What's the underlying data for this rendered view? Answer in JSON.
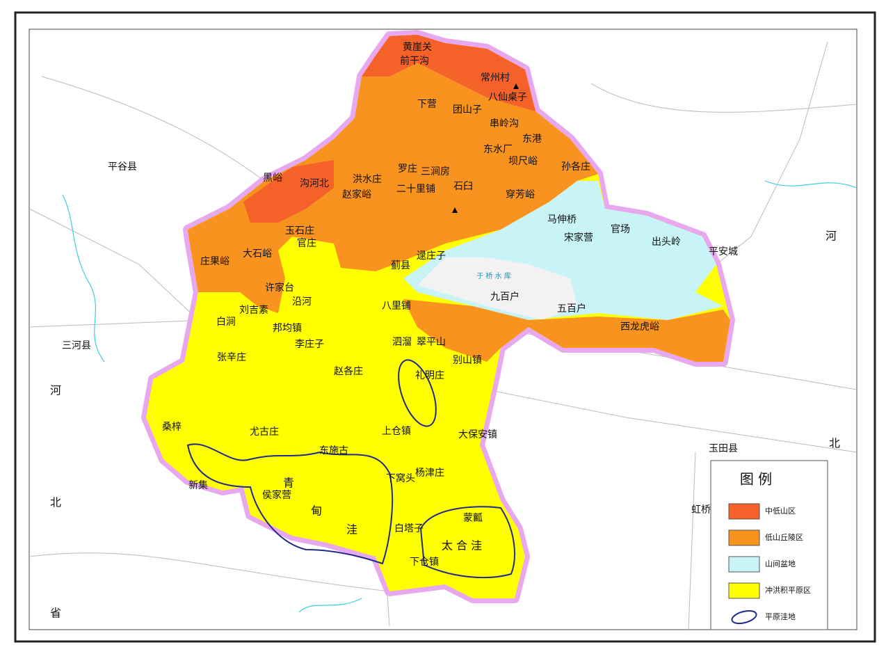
{
  "legend": {
    "title": "图 例",
    "items": [
      {
        "label": "中低山区",
        "color": "#f4622a"
      },
      {
        "label": "低山丘陵区",
        "color": "#f7931e"
      },
      {
        "label": "山间盆地",
        "color": "#c8f4f8"
      },
      {
        "label": "冲洪积平原区",
        "color": "#ffff00"
      },
      {
        "label": "平原洼地",
        "color": "#1f2a8a"
      }
    ]
  },
  "places": [
    "黄崖关",
    "前干沟",
    "常州村",
    "八仙桌子",
    "下营",
    "团山子",
    "串岭沟",
    "东港",
    "东水厂",
    "坝尺峪",
    "孙各庄",
    "平谷县",
    "黑峪",
    "洪水庄",
    "罗庄",
    "三涧房",
    "沟河北",
    "二十里铺",
    "石臼",
    "赵家峪",
    "穿芳峪",
    "马伸桥",
    "官场",
    "宋家营",
    "出头岭",
    "平安城",
    "河",
    "玉石庄",
    "官庄",
    "大石峪",
    "庄果峪",
    "逯庄子",
    "蓟县",
    "于 桥 水 库",
    "许家台",
    "沿河",
    "刘吉素",
    "八里铺",
    "九百户",
    "五百户",
    "白涧",
    "邦均镇",
    "西龙虎峪",
    "三河县",
    "李庄子",
    "泗溜",
    "翠平山",
    "张辛庄",
    "别山镇",
    "赵各庄",
    "礼明庄",
    "河",
    "桑梓",
    "尤古庄",
    "上仓镇",
    "大保安镇",
    "东施古",
    "玉田县",
    "北",
    "杨津庄",
    "青",
    "下窝头",
    "新集",
    "侯家营",
    "北",
    "蒙瓤",
    "甸",
    "虹桥",
    "白塔子",
    "洼",
    "太 合 洼",
    "下仓镇",
    "省"
  ]
}
